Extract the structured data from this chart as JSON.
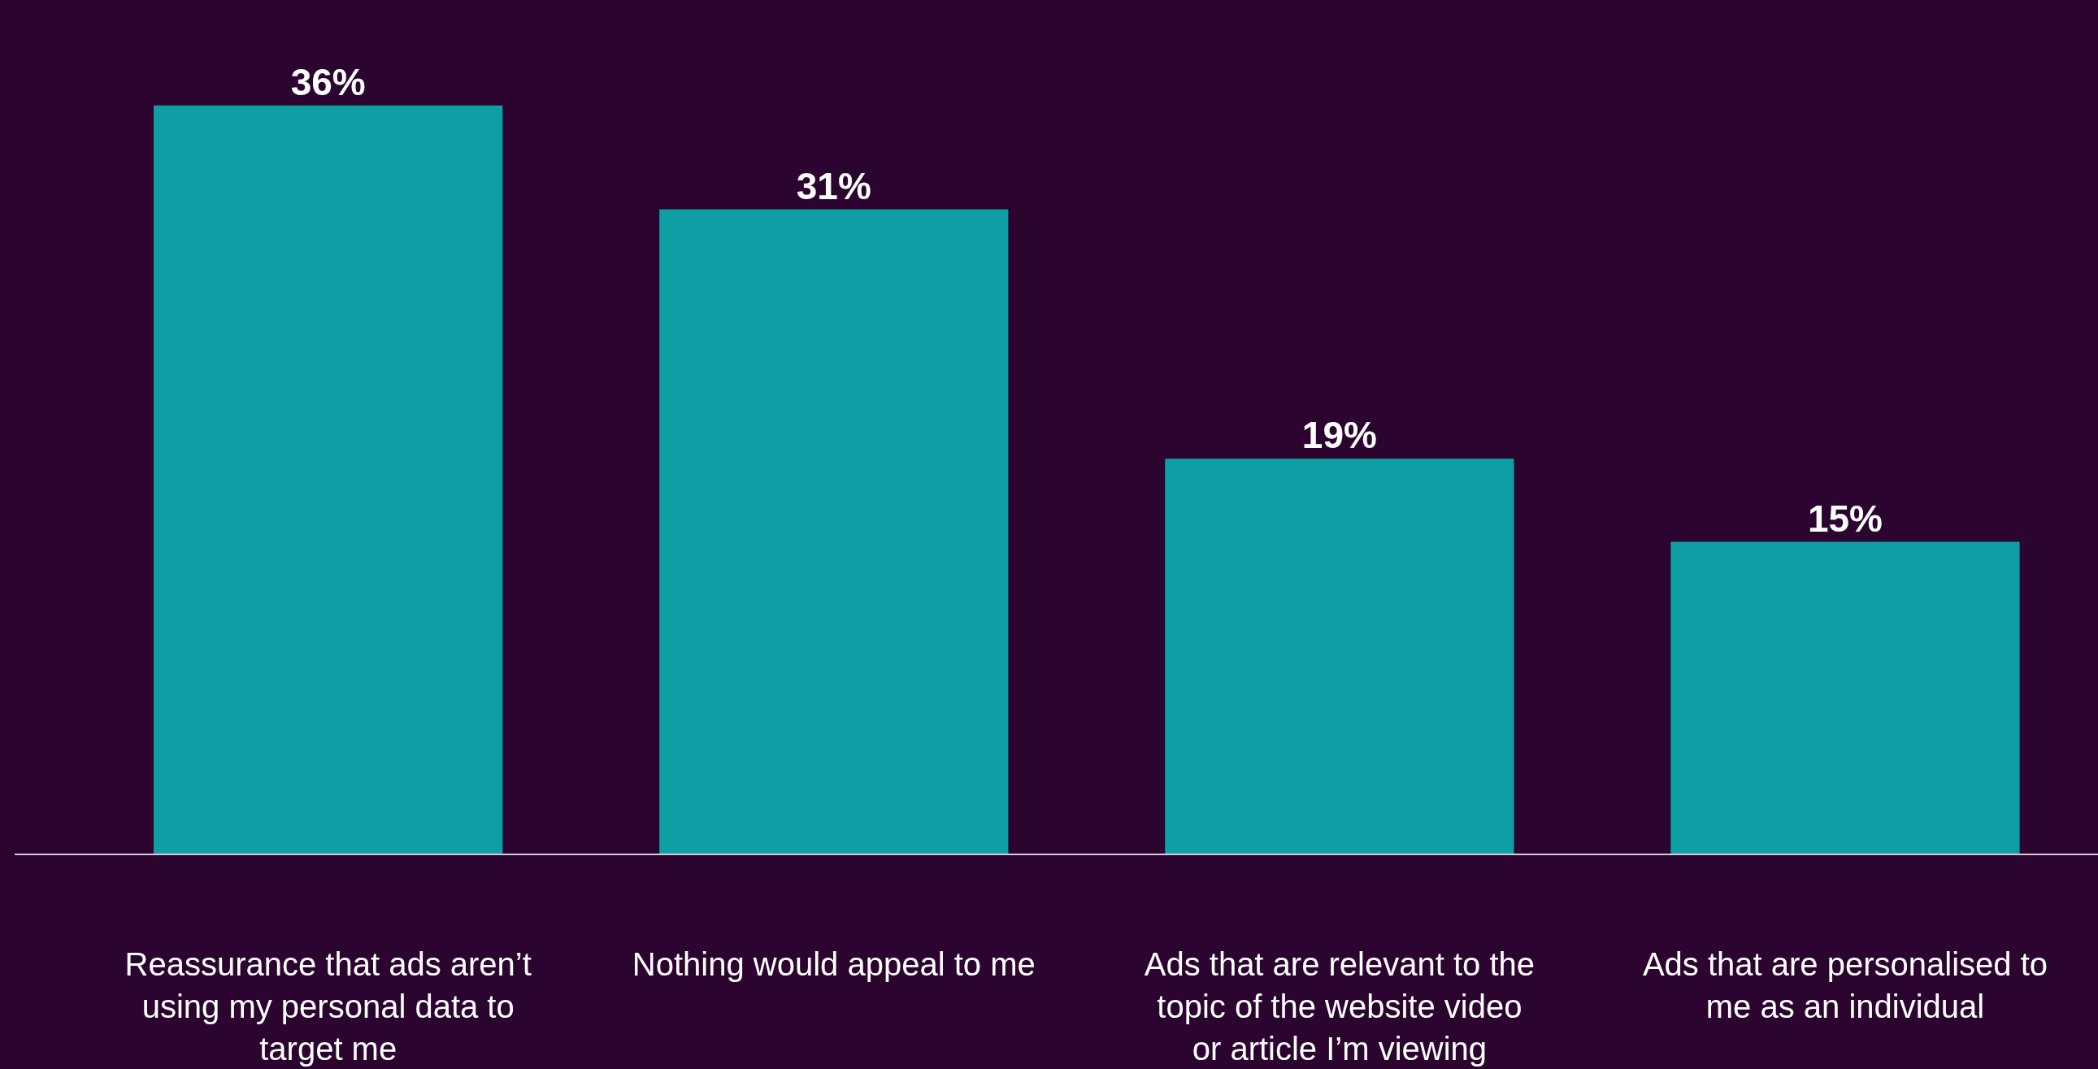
{
  "chart_data": {
    "type": "bar",
    "categories": [
      "Reassurance that ads aren’t using my personal data to target me",
      "Nothing would appeal to me",
      "Ads that are relevant to the topic of the website video or article I’m viewing",
      "Ads that are personalised to me as an individual"
    ],
    "values": [
      36,
      31,
      19,
      15
    ],
    "value_labels": [
      "36%",
      "31%",
      "19%",
      "15%"
    ],
    "color": "#0e9fa5",
    "tick_labels": "x"
  }
}
